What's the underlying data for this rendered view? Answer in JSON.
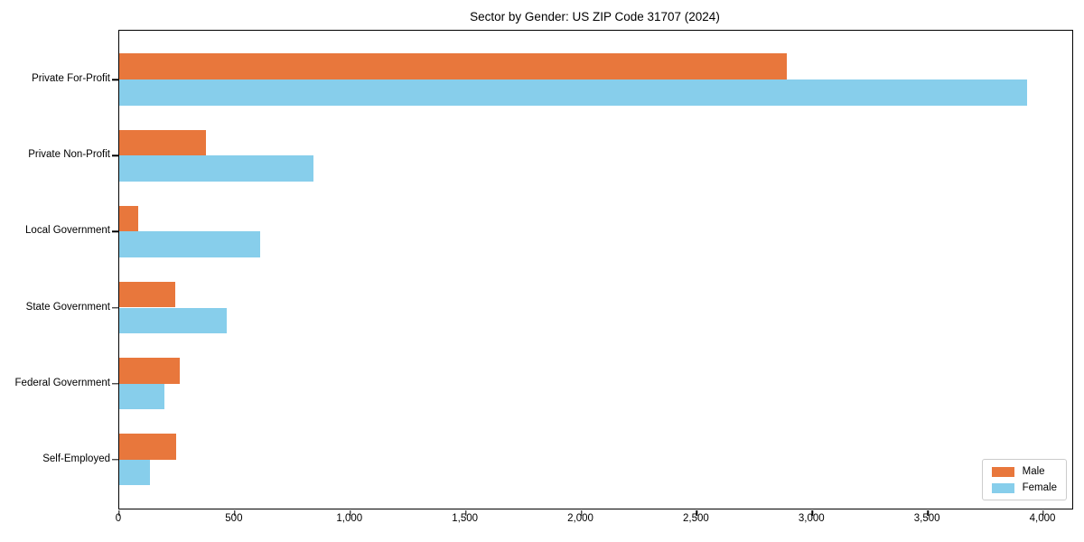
{
  "chart_data": {
    "type": "bar",
    "orientation": "horizontal",
    "title": "Sector by Gender: US ZIP Code 31707 (2024)",
    "categories": [
      "Private For-Profit",
      "Private Non-Profit",
      "Local Government",
      "State Government",
      "Federal Government",
      "Self-Employed"
    ],
    "series": [
      {
        "name": "Male",
        "color": "#E8773C",
        "values": [
          2890,
          375,
          82,
          242,
          262,
          246
        ]
      },
      {
        "name": "Female",
        "color": "#87CEEB",
        "values": [
          3930,
          840,
          610,
          465,
          196,
          134
        ]
      }
    ],
    "xlim": [
      0,
      4125
    ],
    "xticks": [
      0,
      500,
      1000,
      1500,
      2000,
      2500,
      3000,
      3500,
      4000
    ],
    "xtick_labels": [
      "0",
      "500",
      "1,000",
      "1,500",
      "2,000",
      "2,500",
      "3,000",
      "3,500",
      "4,000"
    ],
    "legend_position": "lower right",
    "grid": false,
    "axis_color": "#000000",
    "background": "#ffffff"
  }
}
